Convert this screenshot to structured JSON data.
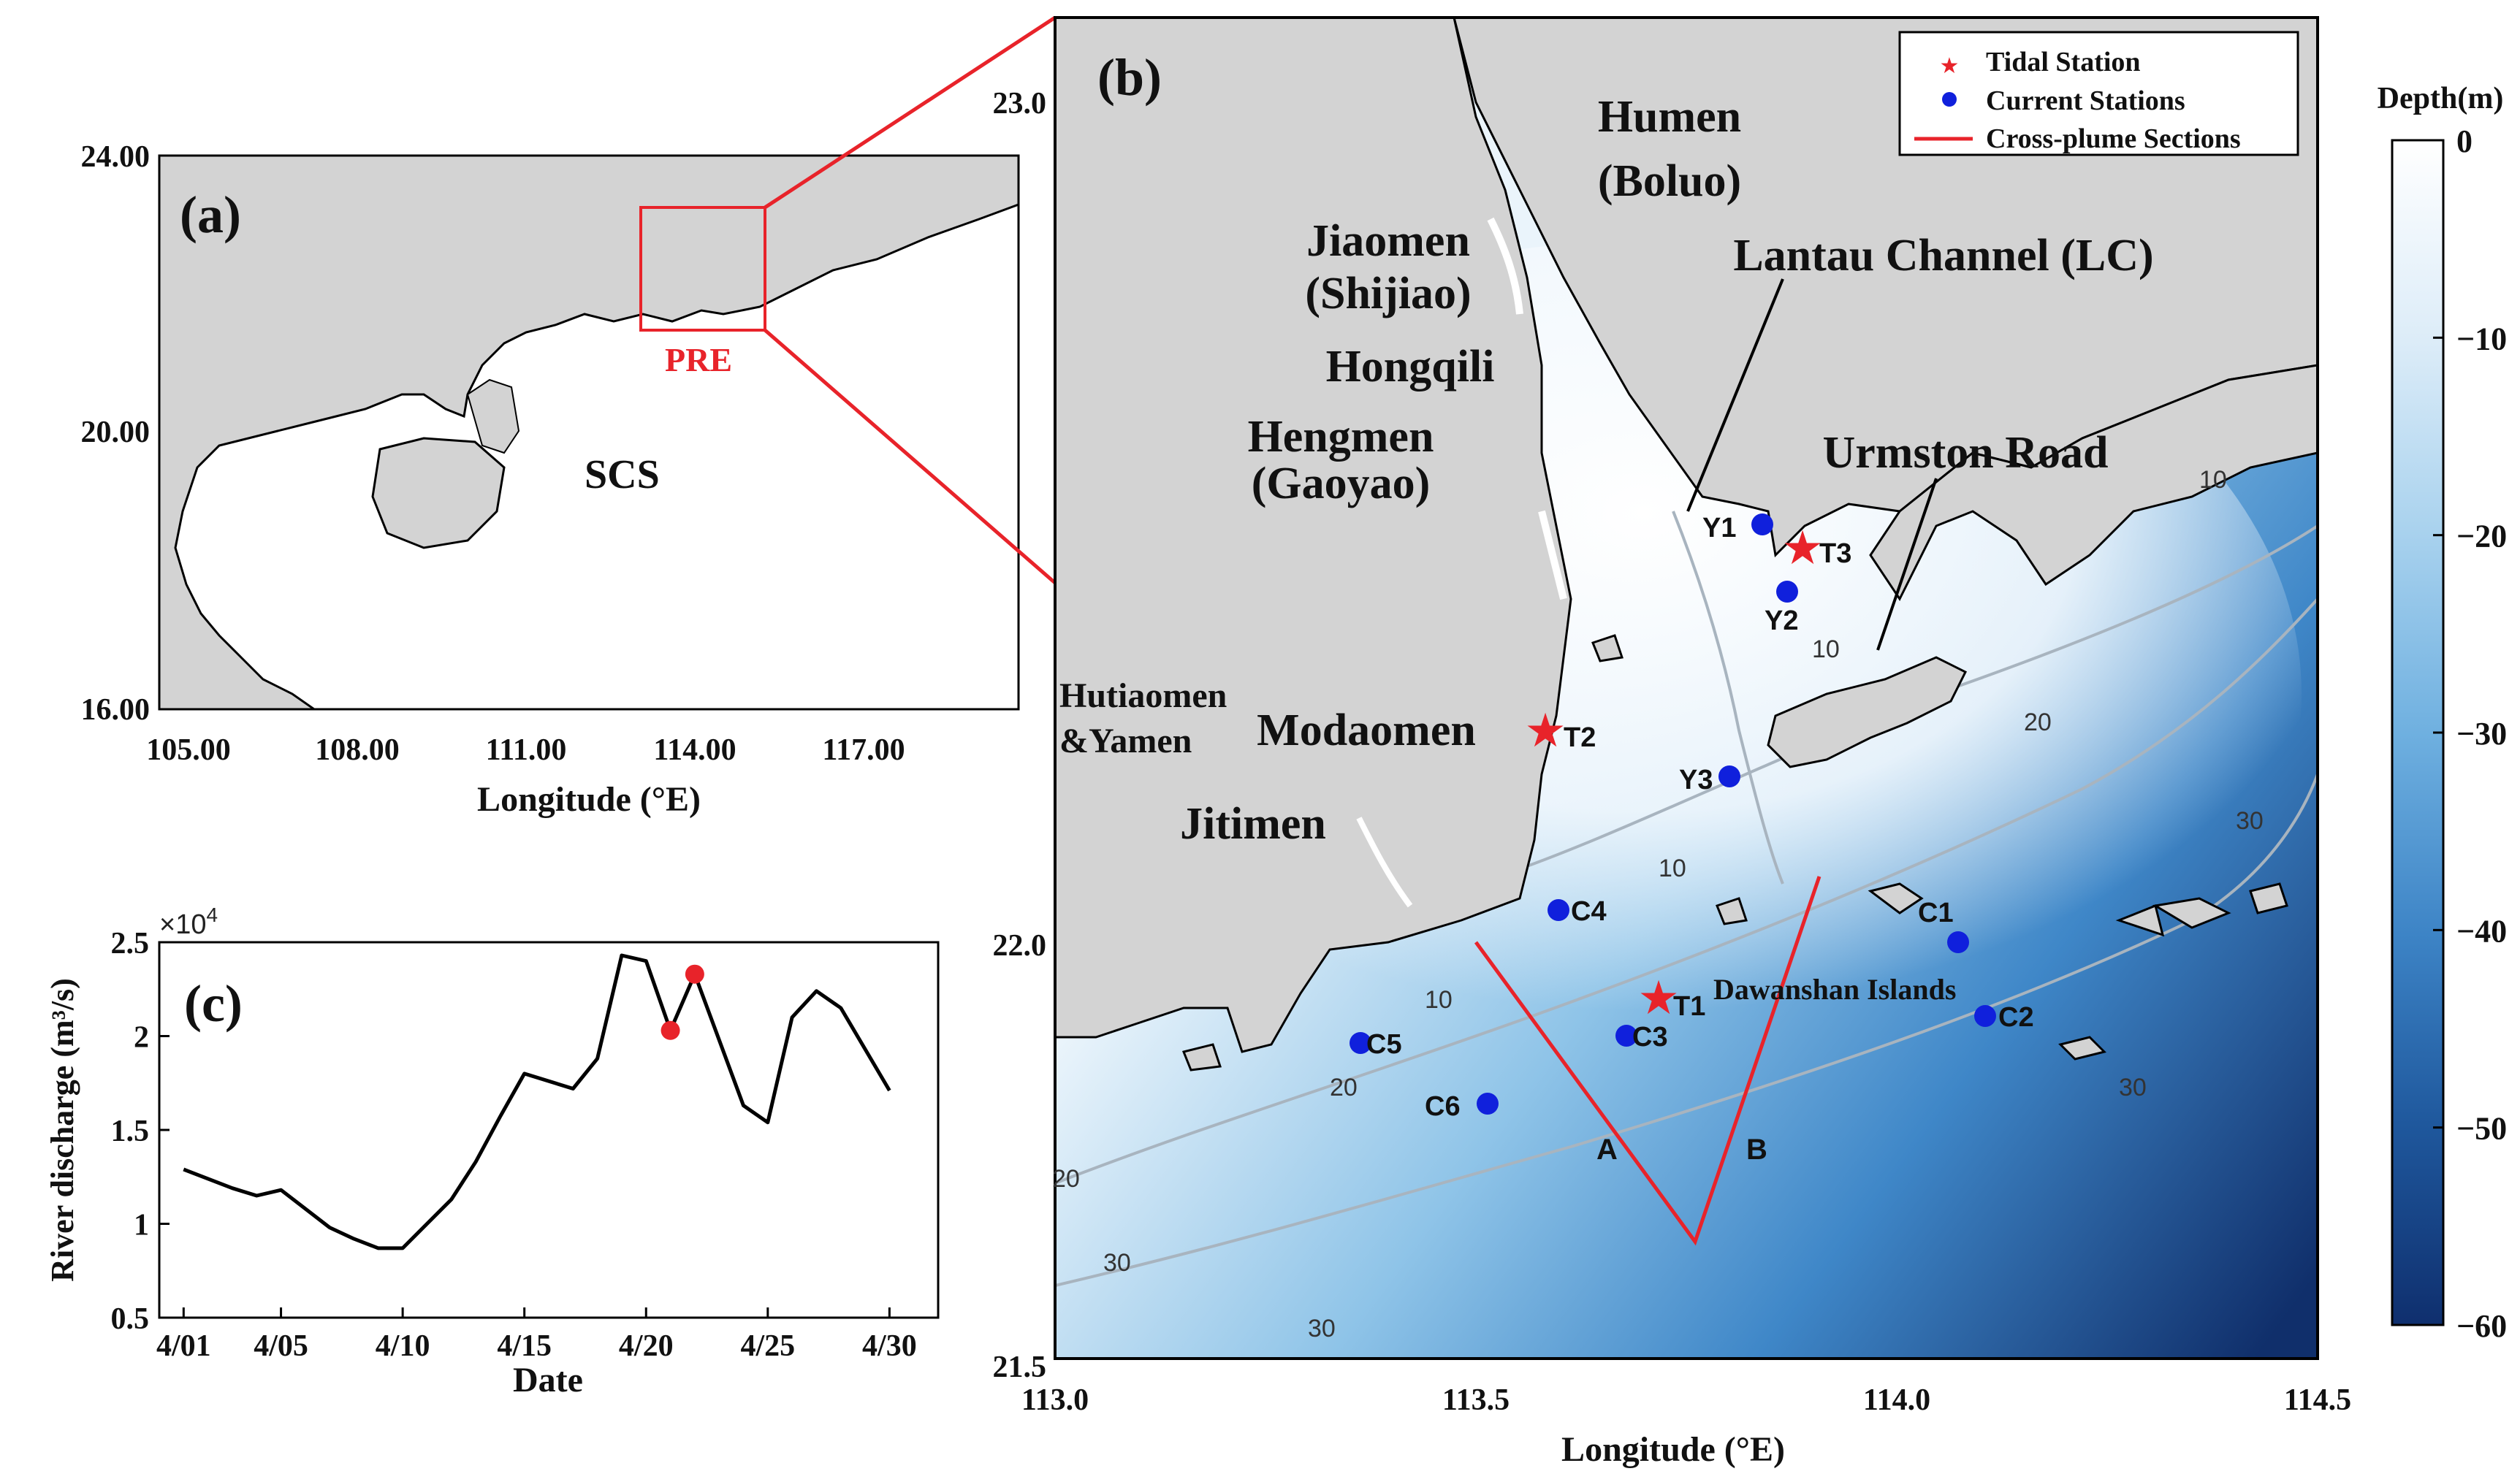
{
  "panel_a": {
    "label": "(a)",
    "region_box_label": "PRE",
    "sea_label": "SCS",
    "xticks": [
      "105.00",
      "108.00",
      "111.00",
      "114.00",
      "117.00"
    ],
    "yticks": [
      "24.00",
      "20.00",
      "16.00"
    ],
    "xlabel": "Longitude (°E)"
  },
  "panel_b": {
    "label": "(b)",
    "xticks": [
      "113.0",
      "113.5",
      "114.0",
      "114.5"
    ],
    "yticks": [
      "23.0",
      "22.0",
      "21.5"
    ],
    "xlabel": "Longitude (°E)",
    "legend": {
      "tidal": "Tidal Station",
      "current": "Current Stations",
      "section": "Cross-plume Sections"
    },
    "place_labels": {
      "humen": "Humen",
      "humen2": "(Boluo)",
      "jiaomen": "Jiaomen",
      "jiaomen2": "(Shijiao)",
      "hongqili": "Hongqili",
      "hengmen": "Hengmen",
      "hengmen2": "(Gaoyao)",
      "lantau": "Lantau Channel (LC)",
      "urmston": "Urmston Road",
      "hutiaomen": "Hutiaomen",
      "yamen": "&Yamen",
      "modaomen": "Modaomen",
      "jitimen": "Jitimen",
      "dawanshan": "Dawanshan Islands"
    },
    "stations": {
      "T1": "T1",
      "T2": "T2",
      "T3": "T3",
      "Y1": "Y1",
      "Y2": "Y2",
      "Y3": "Y3",
      "C1": "C1",
      "C2": "C2",
      "C3": "C3",
      "C4": "C4",
      "C5": "C5",
      "C6": "C6"
    },
    "sections": {
      "A": "A",
      "B": "B"
    },
    "contours": {
      "c10": "10",
      "c20": "20",
      "c30": "30"
    },
    "colorbar": {
      "title": "Depth(m)",
      "ticks": [
        "0",
        "−10",
        "−20",
        "−30",
        "−40",
        "−50",
        "−60"
      ],
      "colors": [
        "#ffffff",
        "#dcecf8",
        "#a9d2ee",
        "#6fb0e0",
        "#3d84c6",
        "#1f589d",
        "#0f2f6e"
      ]
    }
  },
  "panel_c": {
    "label": "(c)",
    "multiplier": "×10",
    "multiplier_exp": "4",
    "ylabel": "River discharge (m³/s)",
    "xlabel": "Date"
  },
  "chart_data": {
    "type": "line",
    "title": "",
    "xlabel": "Date",
    "ylabel": "River discharge (m³/s)",
    "scale_factor": "×10^4",
    "x": [
      1,
      3,
      4,
      5,
      7,
      8,
      9,
      10,
      11,
      12,
      13,
      14,
      15,
      17,
      18,
      19,
      20,
      21,
      22,
      24,
      25,
      26,
      27,
      28,
      30
    ],
    "y": [
      1.29,
      1.19,
      1.15,
      1.18,
      0.98,
      0.92,
      0.87,
      0.87,
      1.0,
      1.13,
      1.33,
      1.57,
      1.8,
      1.72,
      1.88,
      2.43,
      2.4,
      2.03,
      2.33,
      1.63,
      1.54,
      2.1,
      2.24,
      2.15,
      1.71
    ],
    "highlight_points": [
      [
        21,
        2.03
      ],
      [
        22,
        2.33
      ]
    ],
    "xticks": [
      1,
      5,
      10,
      15,
      20,
      25,
      30
    ],
    "xtick_labels": [
      "4/01",
      "4/05",
      "4/10",
      "4/15",
      "4/20",
      "4/25",
      "4/30"
    ],
    "yticks": [
      0.5,
      1,
      1.5,
      2,
      2.5
    ],
    "ytick_labels": [
      "0.5",
      "1",
      "1.5",
      "2",
      "2.5"
    ],
    "xlim": [
      0,
      32
    ],
    "ylim": [
      0.5,
      2.5
    ],
    "line_color": "#000000",
    "highlight_color": "#e8232a"
  }
}
